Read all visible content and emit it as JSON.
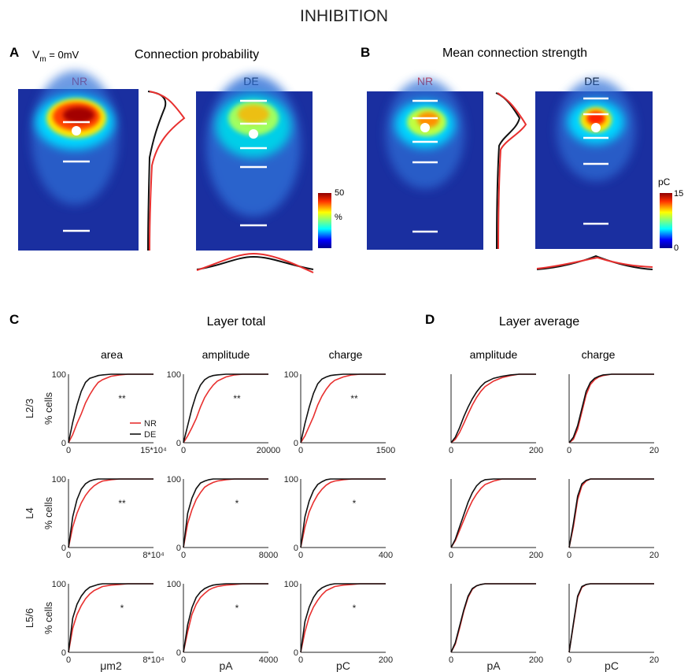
{
  "title": "INHIBITION",
  "panels": {
    "A": {
      "letter": "A",
      "vm_label": "V",
      "vm_sub": "m",
      "vm_value": " = 0mV",
      "title": "Connection probability"
    },
    "B": {
      "letter": "B",
      "title": "Mean connection strength"
    },
    "C": {
      "letter": "C",
      "title": "Layer total"
    },
    "D": {
      "letter": "D",
      "title": "Layer average"
    }
  },
  "maps": {
    "nr_label": "NR",
    "de_label": "DE",
    "colorbar_prob": {
      "max": "50",
      "unit": "%"
    },
    "colorbar_strength": {
      "max": "15",
      "min": "0",
      "unit": "pC"
    }
  },
  "colors": {
    "NR": "#e8302f",
    "DE": "#111111",
    "map_bg": "#1a2fa0",
    "layer_line": "#ffffff"
  },
  "legend": [
    "NR",
    "DE"
  ],
  "col_titles": {
    "C": [
      "area",
      "amplitude",
      "charge"
    ],
    "D": [
      "amplitude",
      "charge"
    ]
  },
  "row_labels": [
    "L2/3",
    "L4",
    "L5/6"
  ],
  "ylabel": "% cells",
  "y_tick_top": "100",
  "y_tick_bottom": "0",
  "x_tick_left": "0",
  "x_units": {
    "area": "μm2",
    "amplitude": "pA",
    "charge": "pC"
  },
  "x_max_labels": [
    [
      "15*10⁴",
      "20000",
      "1500",
      "200",
      "20"
    ],
    [
      "8*10⁴",
      "8000",
      "400",
      "200",
      "20"
    ],
    [
      "8*10⁴",
      "4000",
      "200",
      "200",
      "20"
    ]
  ],
  "sig_marks": [
    [
      "**",
      "**",
      "**",
      "",
      ""
    ],
    [
      "**",
      "*",
      "*",
      "",
      ""
    ],
    [
      "*",
      "*",
      "*",
      "",
      ""
    ]
  ],
  "chart_data": {
    "type": "line",
    "description_of_axes": "cumulative distributions, y = % cells (0-100)",
    "x_norm": [
      0,
      0.05,
      0.1,
      0.15,
      0.2,
      0.25,
      0.3,
      0.35,
      0.4,
      0.5,
      0.6,
      0.7,
      0.8,
      0.9,
      1.0
    ],
    "cdfs": [
      [
        {
          "NR": [
            0,
            12,
            28,
            42,
            58,
            70,
            80,
            88,
            92,
            97,
            99,
            100,
            100,
            100,
            100
          ],
          "DE": [
            0,
            30,
            55,
            75,
            88,
            94,
            96,
            98,
            99,
            100,
            100,
            100,
            100,
            100,
            100
          ]
        },
        {
          "NR": [
            0,
            10,
            22,
            35,
            52,
            66,
            76,
            84,
            90,
            96,
            99,
            100,
            100,
            100,
            100
          ],
          "DE": [
            0,
            25,
            50,
            70,
            84,
            92,
            96,
            98,
            99,
            100,
            100,
            100,
            100,
            100,
            100
          ]
        },
        {
          "NR": [
            0,
            10,
            24,
            38,
            55,
            68,
            78,
            86,
            91,
            96,
            99,
            100,
            100,
            100,
            100
          ],
          "DE": [
            0,
            28,
            52,
            72,
            86,
            93,
            96,
            98,
            99,
            100,
            100,
            100,
            100,
            100,
            100
          ]
        },
        {
          "NR": [
            0,
            5,
            15,
            28,
            42,
            55,
            66,
            75,
            82,
            90,
            95,
            98,
            100,
            100,
            100
          ],
          "DE": [
            0,
            8,
            22,
            38,
            52,
            64,
            74,
            82,
            88,
            94,
            97,
            99,
            100,
            100,
            100
          ]
        },
        {
          "NR": [
            0,
            5,
            20,
            45,
            70,
            85,
            92,
            96,
            98,
            100,
            100,
            100,
            100,
            100,
            100
          ],
          "DE": [
            0,
            8,
            25,
            50,
            75,
            88,
            94,
            97,
            99,
            100,
            100,
            100,
            100,
            100,
            100
          ]
        }
      ],
      [
        {
          "NR": [
            0,
            30,
            50,
            65,
            76,
            84,
            90,
            94,
            97,
            99,
            100,
            100,
            100,
            100,
            100
          ],
          "DE": [
            0,
            45,
            70,
            85,
            93,
            97,
            99,
            100,
            100,
            100,
            100,
            100,
            100,
            100,
            100
          ]
        },
        {
          "NR": [
            0,
            35,
            55,
            70,
            80,
            88,
            92,
            95,
            97,
            99,
            100,
            100,
            100,
            100,
            100
          ],
          "DE": [
            0,
            50,
            72,
            86,
            94,
            97,
            99,
            100,
            100,
            100,
            100,
            100,
            100,
            100,
            100
          ]
        },
        {
          "NR": [
            0,
            30,
            52,
            66,
            77,
            85,
            91,
            95,
            97,
            99,
            100,
            100,
            100,
            100,
            100
          ],
          "DE": [
            0,
            45,
            68,
            83,
            92,
            96,
            99,
            100,
            100,
            100,
            100,
            100,
            100,
            100,
            100
          ]
        },
        {
          "NR": [
            0,
            10,
            25,
            40,
            55,
            68,
            78,
            86,
            92,
            97,
            100,
            100,
            100,
            100,
            100
          ],
          "DE": [
            0,
            12,
            30,
            48,
            66,
            80,
            90,
            96,
            99,
            100,
            100,
            100,
            100,
            100,
            100
          ]
        },
        {
          "NR": [
            0,
            30,
            70,
            90,
            97,
            100,
            100,
            100,
            100,
            100,
            100,
            100,
            100,
            100,
            100
          ],
          "DE": [
            0,
            35,
            75,
            93,
            98,
            100,
            100,
            100,
            100,
            100,
            100,
            100,
            100,
            100,
            100
          ]
        }
      ],
      [
        {
          "NR": [
            0,
            35,
            55,
            68,
            78,
            85,
            90,
            93,
            96,
            98,
            99,
            100,
            100,
            100,
            100
          ],
          "DE": [
            0,
            50,
            70,
            82,
            90,
            95,
            97,
            99,
            100,
            100,
            100,
            100,
            100,
            100,
            100
          ]
        },
        {
          "NR": [
            0,
            30,
            55,
            70,
            80,
            86,
            91,
            94,
            96,
            98,
            99,
            100,
            100,
            100,
            100
          ],
          "DE": [
            0,
            40,
            65,
            80,
            88,
            93,
            96,
            98,
            99,
            100,
            100,
            100,
            100,
            100,
            100
          ]
        },
        {
          "NR": [
            0,
            30,
            52,
            66,
            76,
            84,
            90,
            93,
            96,
            98,
            99,
            100,
            100,
            100,
            100
          ],
          "DE": [
            0,
            45,
            66,
            80,
            89,
            94,
            97,
            99,
            100,
            100,
            100,
            100,
            100,
            100,
            100
          ]
        },
        {
          "NR": [
            0,
            12,
            35,
            60,
            80,
            92,
            97,
            99,
            100,
            100,
            100,
            100,
            100,
            100,
            100
          ],
          "DE": [
            0,
            14,
            38,
            62,
            82,
            93,
            97,
            99,
            100,
            100,
            100,
            100,
            100,
            100,
            100
          ]
        },
        {
          "NR": [
            0,
            40,
            80,
            95,
            99,
            100,
            100,
            100,
            100,
            100,
            100,
            100,
            100,
            100,
            100
          ],
          "DE": [
            0,
            42,
            82,
            96,
            99,
            100,
            100,
            100,
            100,
            100,
            100,
            100,
            100,
            100,
            100
          ]
        }
      ]
    ]
  }
}
